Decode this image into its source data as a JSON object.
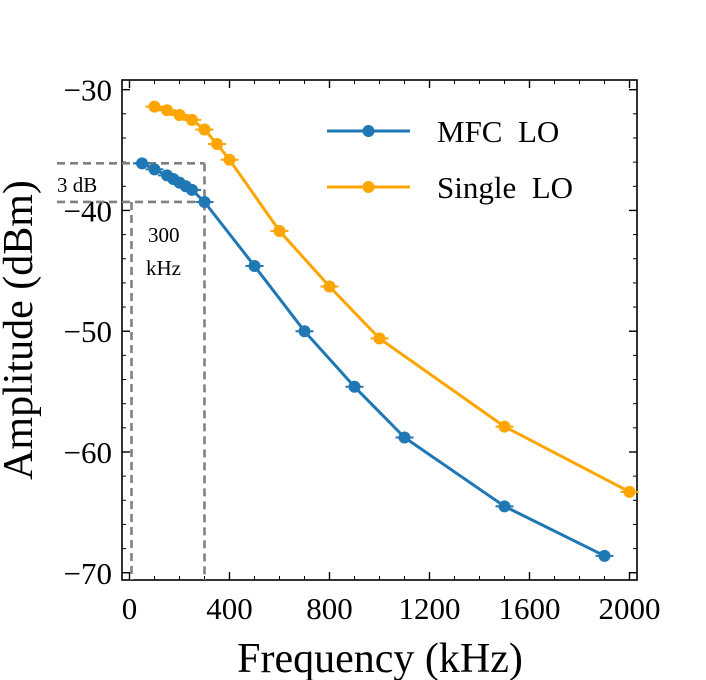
{
  "chart_data": {
    "type": "line",
    "title": "",
    "xlabel": "Frequency (kHz)",
    "ylabel": "Amplitude (dBm)",
    "xlim": [
      -30,
      2030
    ],
    "ylim": [
      -70.6,
      -29.2
    ],
    "x_ticks": [
      0,
      400,
      800,
      1200,
      1600,
      2000
    ],
    "x_tick_labels": [
      "0",
      "400",
      "800",
      "1200",
      "1600",
      "2000"
    ],
    "y_ticks": [
      -30,
      -40,
      -50,
      -60,
      -70
    ],
    "y_tick_labels": [
      "−30",
      "−40",
      "−50",
      "−60",
      "−70"
    ],
    "grid": false,
    "legend_position": "top-right",
    "series": [
      {
        "name": "MFC  LO",
        "color": "#1f77b4",
        "x": [
          50,
          100,
          150,
          175,
          200,
          225,
          250,
          300,
          500,
          700,
          900,
          1100,
          1500,
          1900
        ],
        "y": [
          -36.1,
          -36.6,
          -37.1,
          -37.4,
          -37.7,
          -38.0,
          -38.3,
          -39.3,
          -44.6,
          -50.0,
          -54.6,
          -58.8,
          -64.5,
          -68.6
        ]
      },
      {
        "name": "Single  LO",
        "color": "#ffa500",
        "x": [
          100,
          150,
          200,
          250,
          300,
          350,
          400,
          600,
          800,
          1000,
          1500,
          2000
        ],
        "y": [
          -31.4,
          -31.7,
          -32.1,
          -32.5,
          -33.3,
          -34.5,
          -35.8,
          -41.7,
          -46.3,
          -50.6,
          -57.9,
          -63.3
        ]
      }
    ],
    "annotations": [
      {
        "text": "3 dB"
      },
      {
        "text": "300"
      },
      {
        "text": "kHz"
      }
    ]
  }
}
